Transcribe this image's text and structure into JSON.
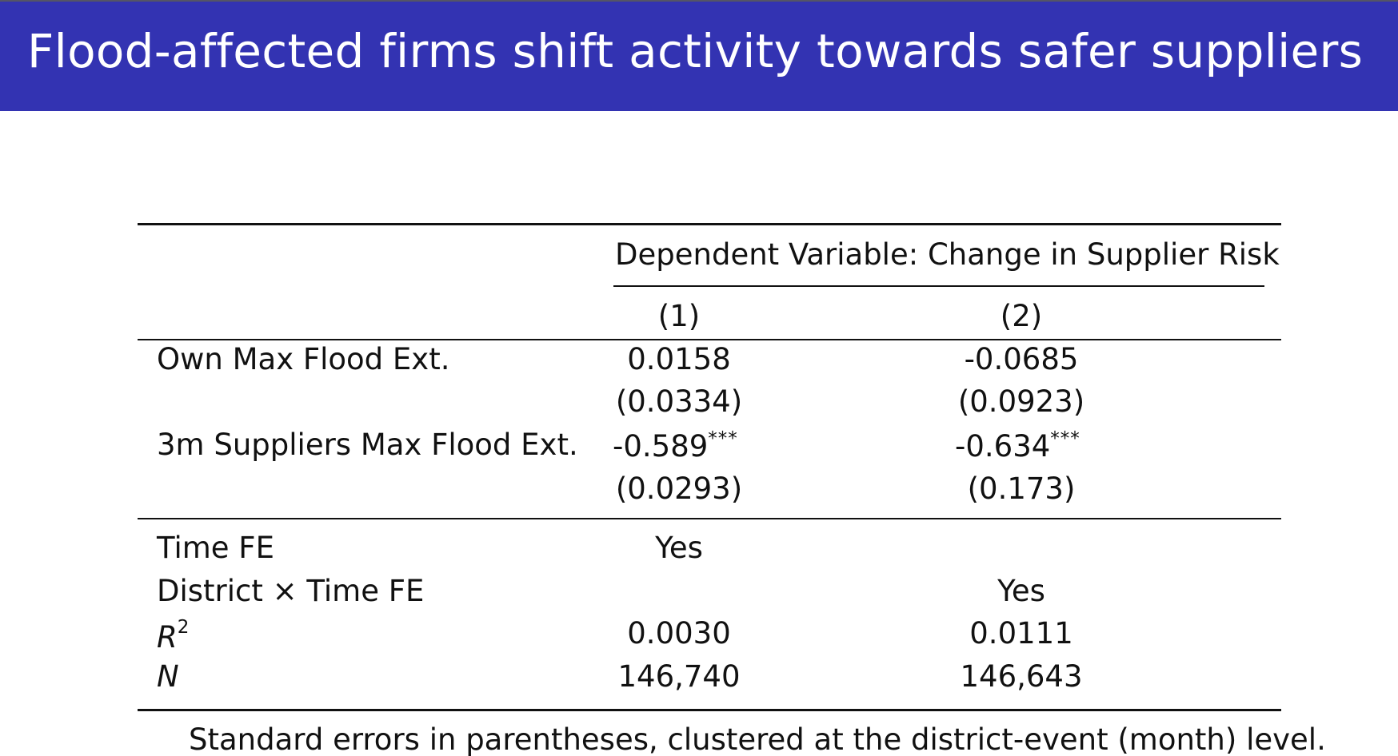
{
  "title": "Flood-affected firms shift activity towards safer suppliers",
  "table": {
    "header_group": "Dependent Variable: Change in Supplier Risk",
    "columns": [
      "(1)",
      "(2)"
    ],
    "rows": [
      {
        "label": "Own Max Flood Ext.",
        "values": [
          "0.0158",
          "-0.0685"
        ],
        "stars": [
          "",
          ""
        ]
      },
      {
        "label": "",
        "values": [
          "(0.0334)",
          "(0.0923)"
        ],
        "stars": [
          "",
          ""
        ]
      },
      {
        "label": "3m Suppliers Max Flood Ext.",
        "values": [
          "-0.589",
          "-0.634"
        ],
        "stars": [
          "***",
          "***"
        ]
      },
      {
        "label": "",
        "values": [
          "(0.0293)",
          "(0.173)"
        ],
        "stars": [
          "",
          ""
        ]
      }
    ],
    "fe_rows": [
      {
        "label": "Time FE",
        "values": [
          "Yes",
          ""
        ]
      },
      {
        "label": "District × Time FE",
        "values": [
          "",
          "Yes"
        ]
      },
      {
        "label_base": "R",
        "label_sup": "2",
        "values": [
          "0.0030",
          "0.0111"
        ]
      },
      {
        "label": "N",
        "values": [
          "146,740",
          "146,643"
        ]
      }
    ],
    "note": "Standard errors in parentheses, clustered at the district-event (month) level."
  },
  "colors": {
    "title_bar": "#3333b2",
    "title_text": "#ffffff",
    "text": "#111111"
  }
}
